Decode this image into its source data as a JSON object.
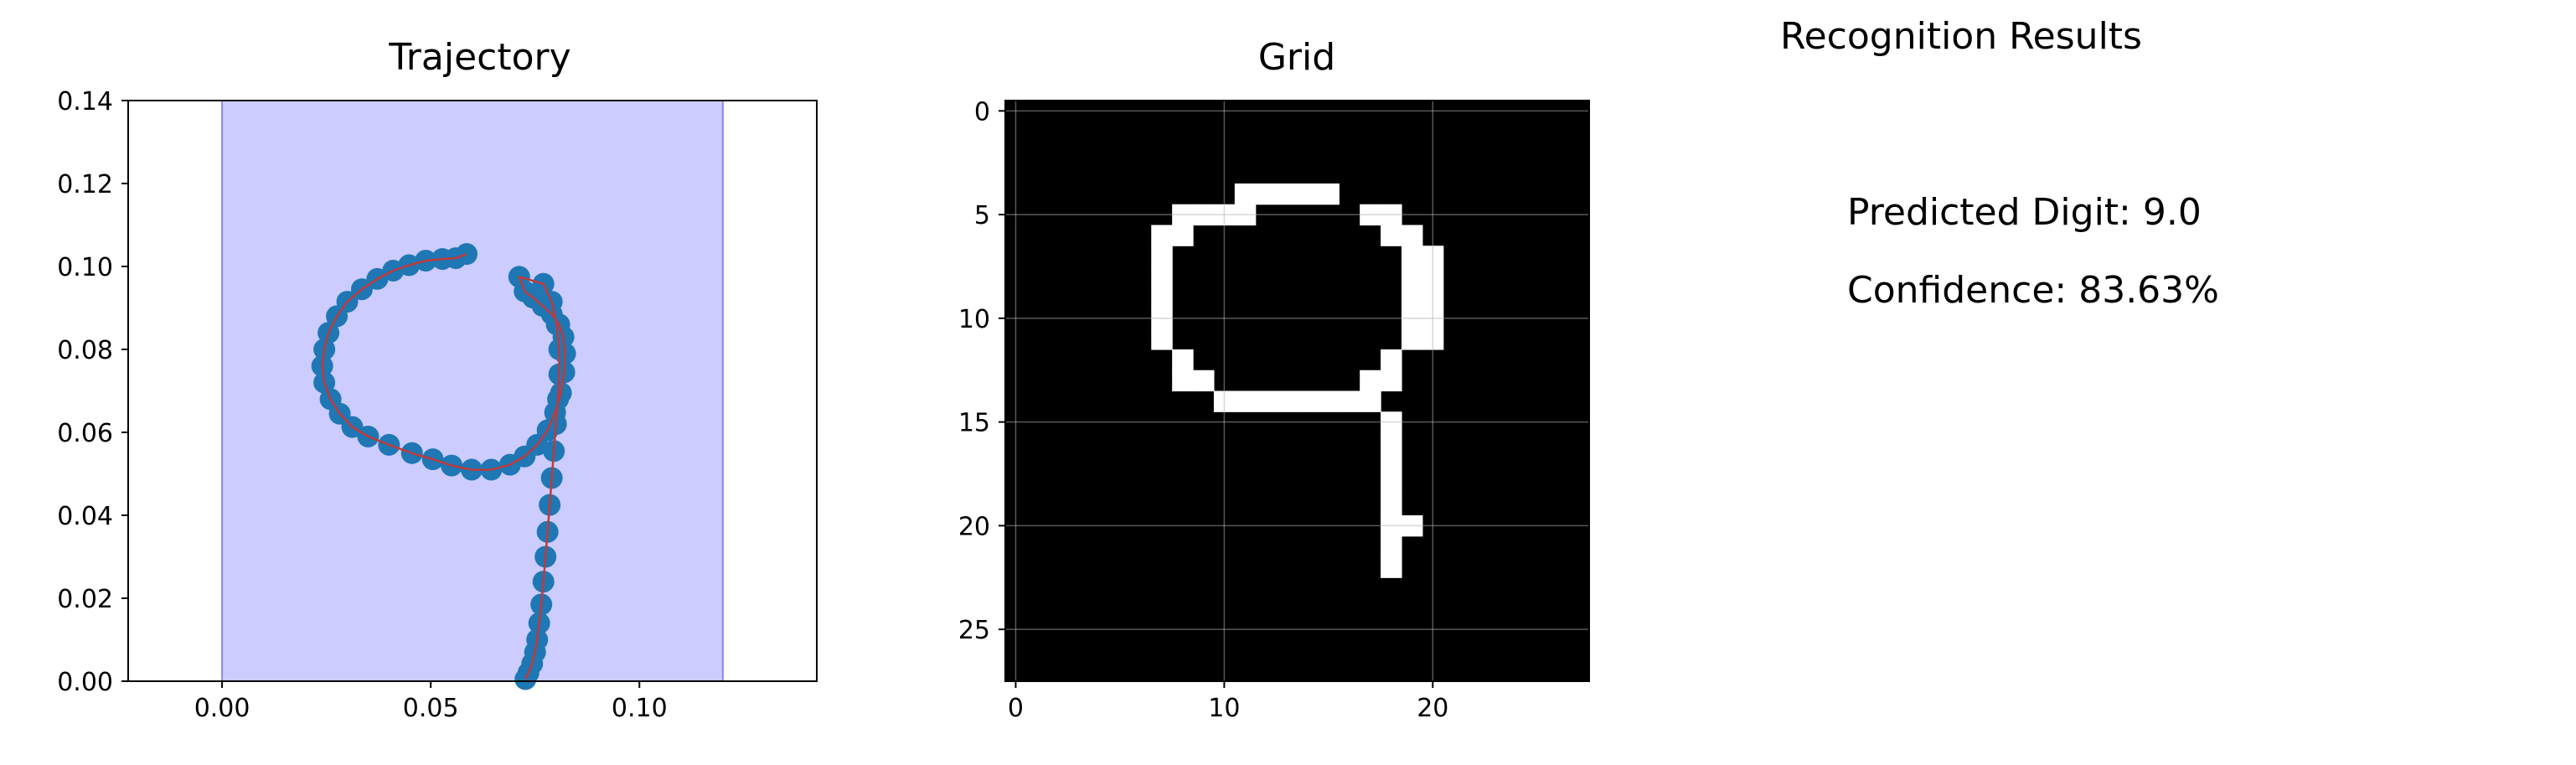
{
  "chart_data": [
    {
      "type": "line",
      "title": "Trajectory",
      "xlim": [
        -0.0225,
        0.1425
      ],
      "ylim": [
        0,
        0.14
      ],
      "xticks": [
        "0.00",
        "0.05",
        "0.10"
      ],
      "yticks": [
        "0.00",
        "0.02",
        "0.04",
        "0.06",
        "0.08",
        "0.10",
        "0.12",
        "0.14"
      ],
      "shaded_region": {
        "x": [
          0,
          0.12
        ],
        "y": [
          0,
          0.14
        ],
        "color": "#ccccff"
      },
      "series": [
        {
          "style": "scatter+line",
          "marker_color": "#1f77b4",
          "line_color": "#c03a3a",
          "x": [
            0.0586,
            0.056,
            0.0528,
            0.0488,
            0.0448,
            0.041,
            0.0372,
            0.0335,
            0.03,
            0.0275,
            0.0255,
            0.0245,
            0.024,
            0.0245,
            0.026,
            0.0282,
            0.0312,
            0.035,
            0.04,
            0.0455,
            0.0505,
            0.055,
            0.0598,
            0.0645,
            0.069,
            0.0725,
            0.0755,
            0.078,
            0.0798,
            0.0812,
            0.082,
            0.0822,
            0.0818,
            0.0808,
            0.079,
            0.0768,
            0.0745,
            0.0725,
            0.0712,
            0.077,
            0.079,
            0.0802,
            0.0808,
            0.0808,
            0.0805,
            0.08,
            0.0795,
            0.079,
            0.0785,
            0.078,
            0.0775,
            0.077,
            0.0765,
            0.076,
            0.0755,
            0.075,
            0.0743,
            0.0734,
            0.0727
          ],
          "y": [
            0.103,
            0.102,
            0.1018,
            0.1014,
            0.1003,
            0.099,
            0.097,
            0.0945,
            0.0915,
            0.088,
            0.084,
            0.08,
            0.076,
            0.072,
            0.068,
            0.0645,
            0.0613,
            0.059,
            0.057,
            0.055,
            0.0535,
            0.052,
            0.051,
            0.051,
            0.0522,
            0.0542,
            0.057,
            0.0605,
            0.0648,
            0.0695,
            0.0745,
            0.079,
            0.083,
            0.086,
            0.0885,
            0.0905,
            0.0925,
            0.094,
            0.0975,
            0.0958,
            0.0915,
            0.086,
            0.08,
            0.074,
            0.068,
            0.062,
            0.0555,
            0.049,
            0.0425,
            0.036,
            0.03,
            0.024,
            0.0185,
            0.014,
            0.01,
            0.007,
            0.0042,
            0.002,
            0.0005
          ]
        }
      ]
    },
    {
      "type": "heatmap",
      "title": "Grid",
      "colormap": "gray",
      "xlim": [
        -0.5,
        27.5
      ],
      "ylim": [
        27.5,
        -0.5
      ],
      "xticks": [
        "0",
        "10",
        "20"
      ],
      "yticks": [
        "0",
        "5",
        "10",
        "15",
        "20",
        "25"
      ],
      "grid": true,
      "size": [
        28,
        28
      ],
      "on_cells": [
        [
          4,
          11
        ],
        [
          4,
          12
        ],
        [
          4,
          13
        ],
        [
          4,
          14
        ],
        [
          4,
          15
        ],
        [
          5,
          8
        ],
        [
          5,
          9
        ],
        [
          5,
          10
        ],
        [
          5,
          11
        ],
        [
          5,
          17
        ],
        [
          5,
          18
        ],
        [
          6,
          7
        ],
        [
          6,
          8
        ],
        [
          6,
          18
        ],
        [
          6,
          19
        ],
        [
          7,
          7
        ],
        [
          7,
          19
        ],
        [
          7,
          20
        ],
        [
          8,
          7
        ],
        [
          8,
          19
        ],
        [
          8,
          20
        ],
        [
          9,
          7
        ],
        [
          9,
          19
        ],
        [
          9,
          20
        ],
        [
          10,
          7
        ],
        [
          10,
          19
        ],
        [
          10,
          20
        ],
        [
          11,
          7
        ],
        [
          11,
          19
        ],
        [
          11,
          20
        ],
        [
          12,
          8
        ],
        [
          12,
          18
        ],
        [
          13,
          8
        ],
        [
          13,
          9
        ],
        [
          13,
          17
        ],
        [
          13,
          18
        ],
        [
          14,
          10
        ],
        [
          14,
          11
        ],
        [
          14,
          12
        ],
        [
          14,
          13
        ],
        [
          14,
          14
        ],
        [
          14,
          15
        ],
        [
          14,
          16
        ],
        [
          14,
          17
        ],
        [
          15,
          18
        ],
        [
          16,
          18
        ],
        [
          17,
          18
        ],
        [
          18,
          18
        ],
        [
          19,
          18
        ],
        [
          20,
          18
        ],
        [
          20,
          19
        ],
        [
          21,
          18
        ],
        [
          22,
          18
        ]
      ]
    }
  ],
  "results": {
    "title": "Recognition Results",
    "predicted": "Predicted Digit: 9.0",
    "confidence": "Confidence: 83.63%"
  }
}
